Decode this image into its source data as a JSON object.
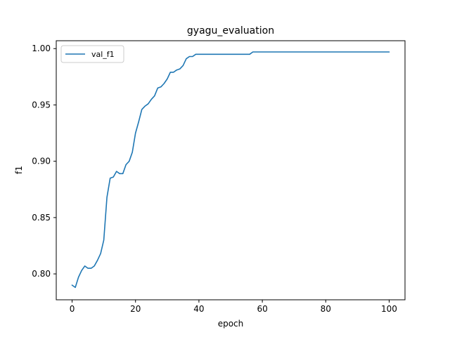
{
  "chart_data": {
    "type": "line",
    "title": "gyagu_evaluation",
    "xlabel": "epoch",
    "ylabel": "f1",
    "xlim": [
      -5,
      105
    ],
    "ylim": [
      0.777,
      1.007
    ],
    "xticks": [
      0,
      20,
      40,
      60,
      80,
      100
    ],
    "xtick_labels": [
      "0",
      "20",
      "40",
      "60",
      "80",
      "100"
    ],
    "yticks": [
      0.8,
      0.85,
      0.9,
      0.95,
      1.0
    ],
    "ytick_labels": [
      "0.80",
      "0.85",
      "0.90",
      "0.95",
      "1.00"
    ],
    "grid": false,
    "legend": "top-left",
    "series": [
      {
        "name": "val_f1",
        "color": "#1f77b4",
        "x": [
          0,
          1,
          2,
          3,
          4,
          5,
          6,
          7,
          8,
          9,
          10,
          11,
          12,
          13,
          14,
          15,
          16,
          17,
          18,
          19,
          20,
          21,
          22,
          23,
          24,
          25,
          26,
          27,
          28,
          29,
          30,
          31,
          32,
          33,
          34,
          35,
          36,
          37,
          38,
          39,
          40,
          45,
          50,
          55,
          56,
          57,
          60,
          70,
          80,
          90,
          100
        ],
        "y": [
          0.79,
          0.788,
          0.797,
          0.803,
          0.807,
          0.805,
          0.805,
          0.807,
          0.812,
          0.818,
          0.83,
          0.868,
          0.885,
          0.886,
          0.891,
          0.889,
          0.889,
          0.897,
          0.9,
          0.908,
          0.925,
          0.935,
          0.946,
          0.949,
          0.951,
          0.955,
          0.958,
          0.965,
          0.966,
          0.969,
          0.973,
          0.979,
          0.979,
          0.981,
          0.982,
          0.985,
          0.991,
          0.993,
          0.993,
          0.995,
          0.995,
          0.995,
          0.995,
          0.995,
          0.995,
          0.997,
          0.997,
          0.997,
          0.997,
          0.997,
          0.997
        ]
      }
    ]
  }
}
